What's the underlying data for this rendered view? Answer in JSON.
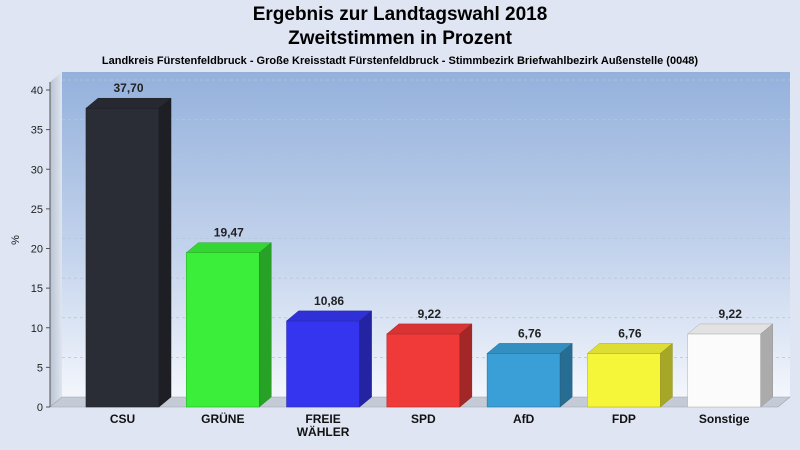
{
  "chart_data": {
    "type": "bar",
    "title": "Ergebnis zur Landtagswahl 2018",
    "subtitle": "Zweitstimmen in Prozent",
    "region": "Landkreis Fürstenfeldbruck - Große Kreisstadt Fürstenfeldbruck - Stimmbezirk Briefwahlbezirk Außenstelle (0048)",
    "ylabel": "%",
    "xlabel": "",
    "ylim": [
      0,
      40
    ],
    "yticks": [
      "0",
      "5",
      "10",
      "15",
      "20",
      "25",
      "30",
      "35",
      "40"
    ],
    "categories": [
      [
        "CSU"
      ],
      [
        "GRÜNE"
      ],
      [
        "FREIE",
        "WÄHLER"
      ],
      [
        "SPD"
      ],
      [
        "AfD"
      ],
      [
        "FDP"
      ],
      [
        "Sonstige"
      ]
    ],
    "values": [
      37.7,
      19.47,
      10.86,
      9.22,
      6.76,
      6.76,
      9.22
    ],
    "value_labels": [
      "37,70",
      "19,47",
      "10,86",
      "9,22",
      "6,76",
      "6,76",
      "9,22"
    ],
    "colors": [
      "#2b2d36",
      "#3aee3a",
      "#3535f0",
      "#f03a3a",
      "#3a9fd6",
      "#f5f53a",
      "#fbfbfb"
    ],
    "grid": true,
    "legend": "none"
  }
}
